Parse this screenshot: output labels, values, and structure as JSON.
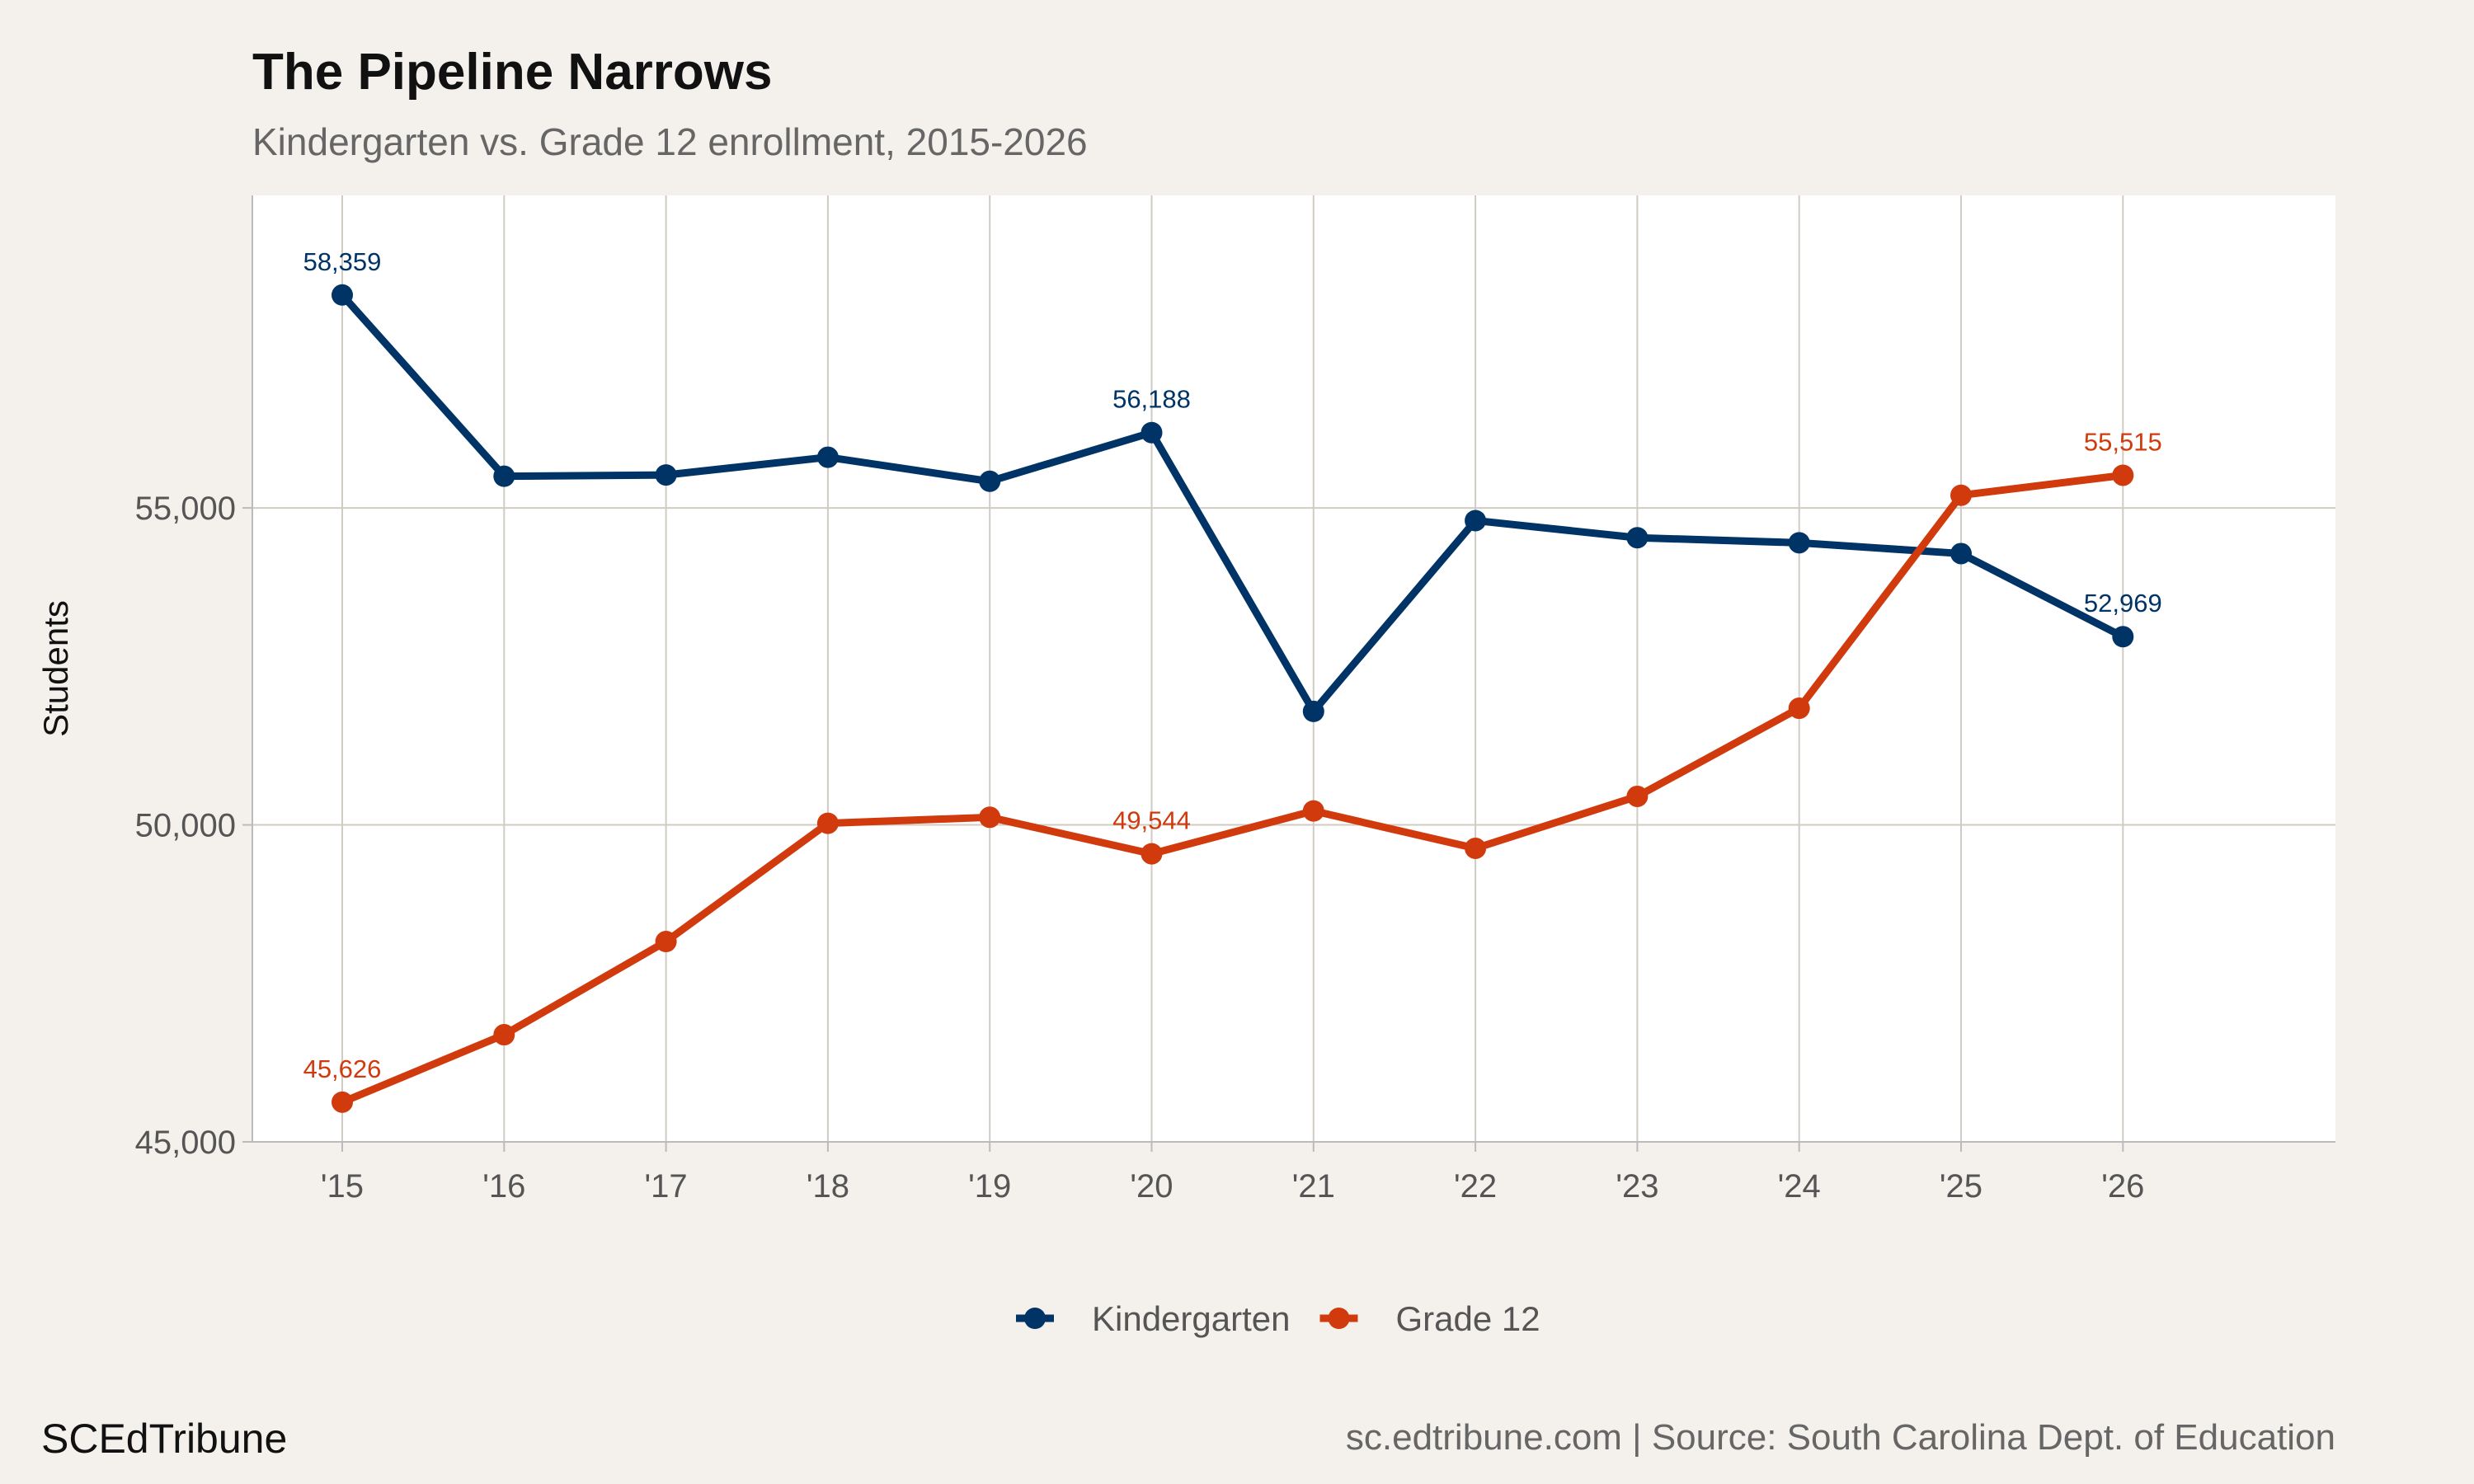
{
  "chart_data": {
    "type": "line",
    "title": "The Pipeline Narrows",
    "subtitle": "Kindergarten vs. Grade 12 enrollment, 2015-2026",
    "xlabel": "",
    "ylabel": "Students",
    "categories": [
      "'15",
      "'16",
      "'17",
      "'18",
      "'19",
      "'20",
      "'21",
      "'22",
      "'23",
      "'24",
      "'25",
      "'26"
    ],
    "yticks": [
      45000,
      50000,
      55000
    ],
    "ytick_labels": [
      "45,000",
      "50,000",
      "55,000"
    ],
    "ylim": [
      45000,
      59930
    ],
    "grid": true,
    "legend_position": "bottom",
    "series": [
      {
        "name": "Kindergarten",
        "color": "#003366",
        "values": [
          58359,
          55500,
          55520,
          55800,
          55420,
          56188,
          51790,
          54800,
          54530,
          54450,
          54280,
          52969
        ],
        "labels": {
          "0": "58,359",
          "5": "56,188",
          "11": "52,969"
        }
      },
      {
        "name": "Grade 12",
        "color": "#d03a0c",
        "values": [
          45626,
          46690,
          48160,
          50025,
          50120,
          49544,
          50220,
          49630,
          50450,
          51840,
          55200,
          55515
        ],
        "labels": {
          "0": "45,626",
          "5": "49,544",
          "11": "55,515"
        }
      }
    ]
  },
  "footer": {
    "brand": "SCEdTribune",
    "source": "sc.edtribune.com | Source: South Carolina Dept. of Education"
  }
}
